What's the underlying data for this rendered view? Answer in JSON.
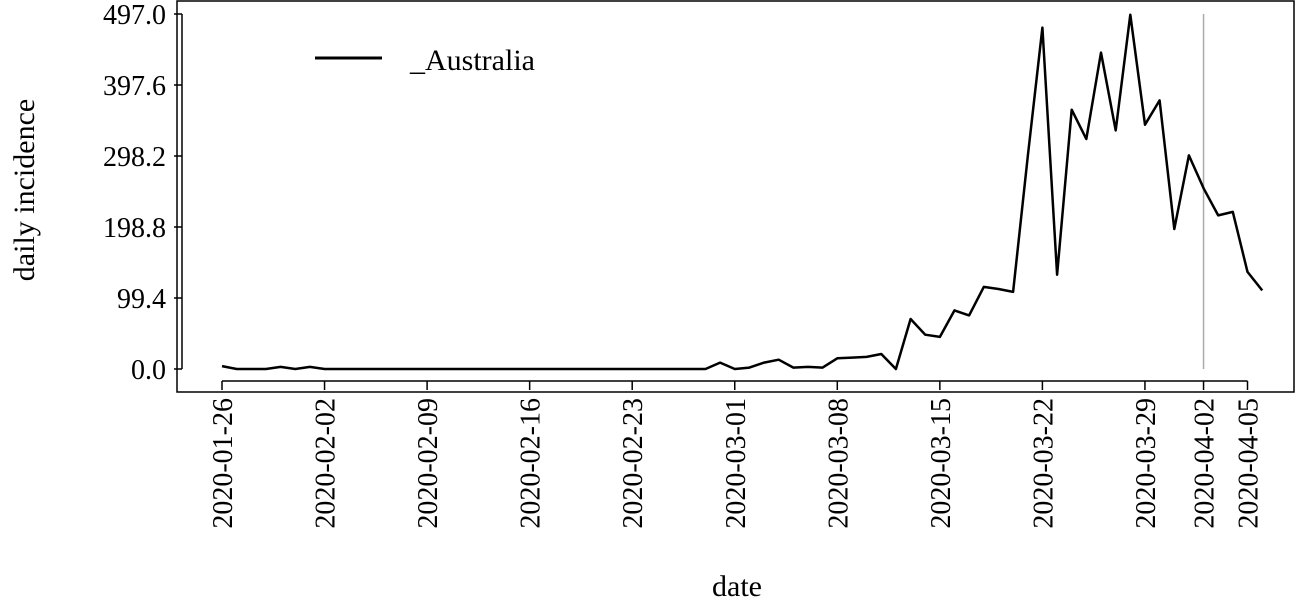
{
  "chart_data": {
    "type": "line",
    "xlabel": "date",
    "ylabel": "daily incidence",
    "ylim": [
      0.0,
      497.0
    ],
    "y_ticks": [
      "0.0",
      "99.4",
      "198.8",
      "298.2",
      "397.6",
      "497.0"
    ],
    "x_ticks": [
      "2020-01-26",
      "2020-02-02",
      "2020-02-09",
      "2020-02-16",
      "2020-02-23",
      "2020-03-01",
      "2020-03-08",
      "2020-03-15",
      "2020-03-22",
      "2020-03-29",
      "2020-04-02",
      "2020-04-05"
    ],
    "x_start_date": "2020-01-26",
    "legend": {
      "position": "top-left"
    },
    "reference_line": {
      "x": "2020-04-02",
      "color": "#aaaaaa"
    },
    "grid": false,
    "series": [
      {
        "name": "_Australia",
        "color": "#000000",
        "x": [
          "2020-01-26",
          "2020-01-27",
          "2020-01-28",
          "2020-01-29",
          "2020-01-30",
          "2020-01-31",
          "2020-02-01",
          "2020-02-02",
          "2020-02-03",
          "2020-02-04",
          "2020-02-05",
          "2020-02-06",
          "2020-02-07",
          "2020-02-08",
          "2020-02-09",
          "2020-02-10",
          "2020-02-11",
          "2020-02-12",
          "2020-02-13",
          "2020-02-14",
          "2020-02-15",
          "2020-02-16",
          "2020-02-17",
          "2020-02-18",
          "2020-02-19",
          "2020-02-20",
          "2020-02-21",
          "2020-02-22",
          "2020-02-23",
          "2020-02-24",
          "2020-02-25",
          "2020-02-26",
          "2020-02-27",
          "2020-02-28",
          "2020-02-29",
          "2020-03-01",
          "2020-03-02",
          "2020-03-03",
          "2020-03-04",
          "2020-03-05",
          "2020-03-06",
          "2020-03-07",
          "2020-03-08",
          "2020-03-09",
          "2020-03-10",
          "2020-03-11",
          "2020-03-12",
          "2020-03-13",
          "2020-03-14",
          "2020-03-15",
          "2020-03-16",
          "2020-03-17",
          "2020-03-18",
          "2020-03-19",
          "2020-03-20",
          "2020-03-21",
          "2020-03-22",
          "2020-03-23",
          "2020-03-24",
          "2020-03-25",
          "2020-03-26",
          "2020-03-27",
          "2020-03-28",
          "2020-03-29",
          "2020-03-30",
          "2020-03-31",
          "2020-04-01",
          "2020-04-02",
          "2020-04-03",
          "2020-04-04",
          "2020-04-05",
          "2020-04-06"
        ],
        "values": [
          4,
          0,
          0,
          0,
          3,
          0,
          3,
          0,
          0,
          0,
          0,
          0,
          0,
          0,
          0,
          0,
          0,
          0,
          0,
          0,
          0,
          0,
          0,
          0,
          0,
          0,
          0,
          0,
          0,
          0,
          0,
          0,
          0,
          0,
          9,
          0,
          2,
          9,
          13,
          2,
          3,
          2,
          15,
          16,
          17,
          21,
          0,
          70,
          48,
          45,
          82,
          75,
          115,
          112,
          108,
          298,
          478,
          132,
          363,
          322,
          443,
          334,
          496,
          342,
          376,
          196,
          299,
          253,
          215,
          220,
          136,
          110
        ]
      }
    ]
  }
}
